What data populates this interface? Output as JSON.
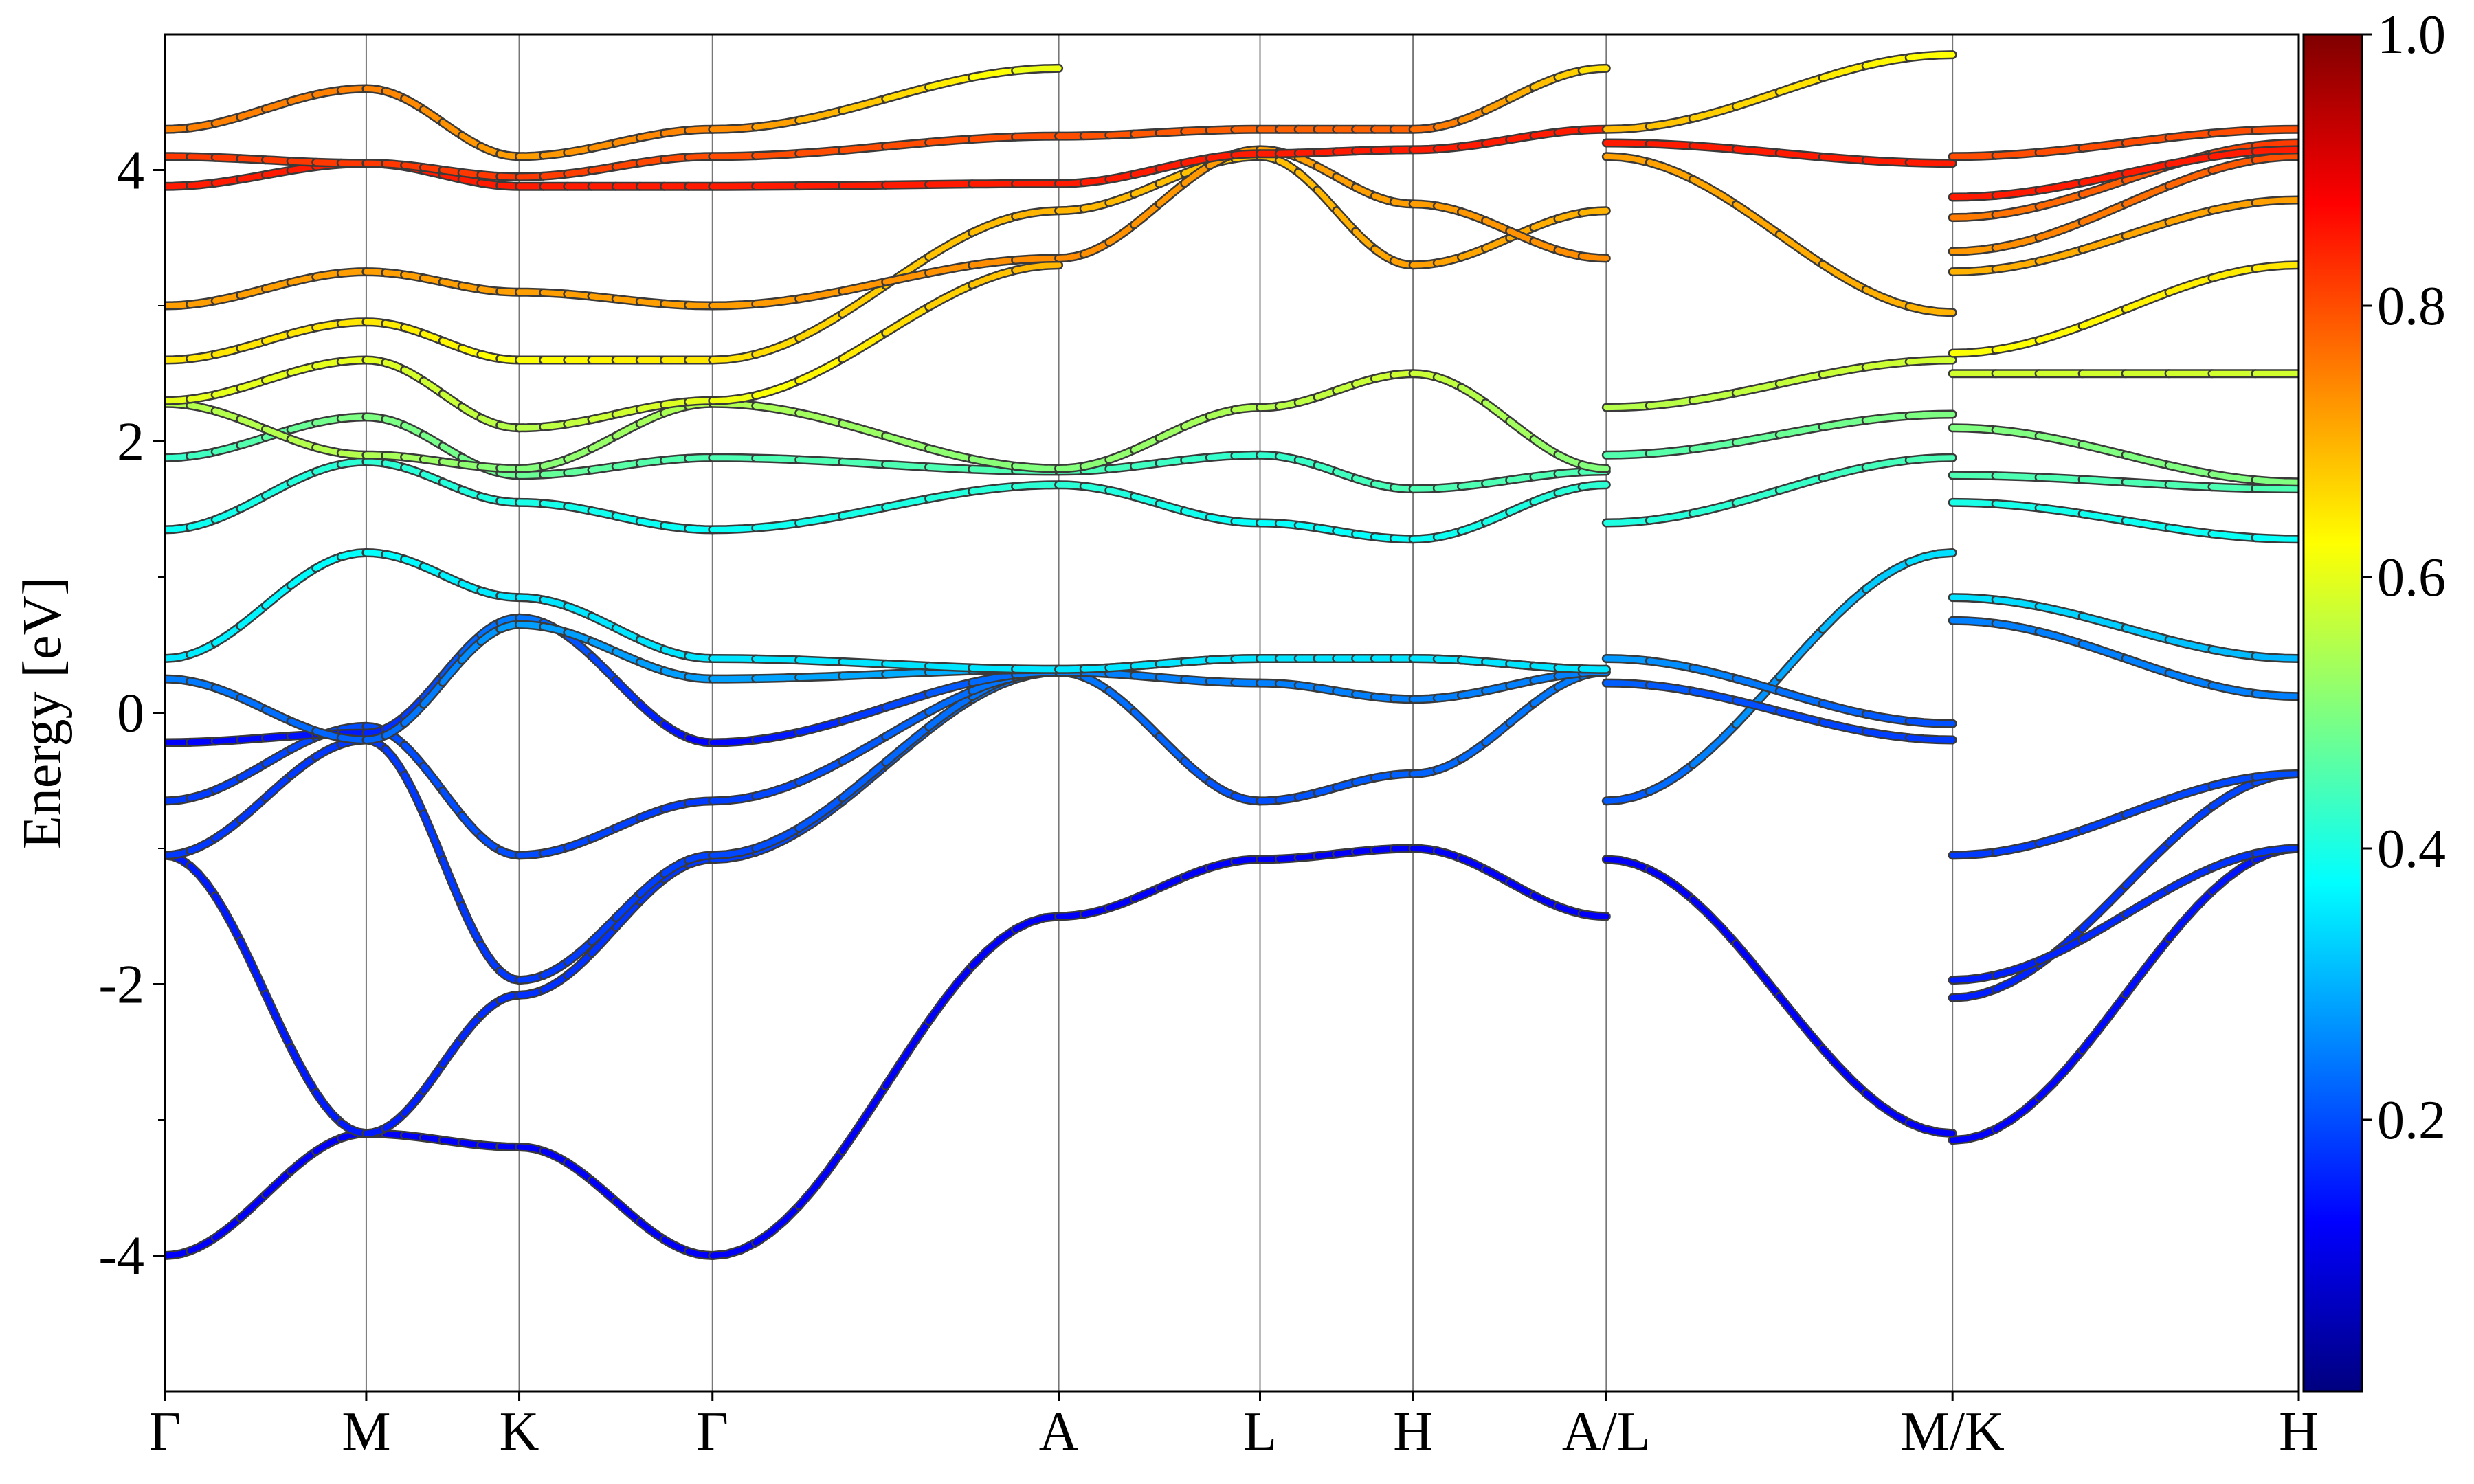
{
  "chart_data": {
    "type": "line",
    "title": "",
    "xlabel": "",
    "ylabel": "Energy [eV]",
    "ylim": [
      -5,
      5
    ],
    "yticks": [
      -4,
      -2,
      0,
      2,
      4
    ],
    "ytick_labels": [
      "-4",
      "-2",
      "0",
      "2",
      "4"
    ],
    "xlim": [
      0,
      10.6
    ],
    "kpoints": [
      {
        "label": "Γ",
        "x": 0.0
      },
      {
        "label": "M",
        "x": 1.0
      },
      {
        "label": "K",
        "x": 1.76
      },
      {
        "label": "Γ",
        "x": 2.72
      },
      {
        "label": "A",
        "x": 4.44
      },
      {
        "label": "L",
        "x": 5.44
      },
      {
        "label": "H",
        "x": 6.2
      },
      {
        "label": "A/L",
        "x": 7.16
      },
      {
        "label": "M/K",
        "x": 8.88
      },
      {
        "label": "H",
        "x": 10.6
      }
    ],
    "colorbar": {
      "colormap": "jet",
      "range": [
        0.0,
        1.0
      ],
      "tick_values": [
        0.2,
        0.4,
        0.6,
        0.8,
        1.0
      ],
      "tick_labels": [
        "0.2",
        "0.4",
        "0.6",
        "0.8",
        "1.0"
      ]
    },
    "series": [
      {
        "x": [
          0,
          1.0,
          1.76,
          2.72,
          4.44,
          5.44,
          6.2,
          7.16
        ],
        "y": [
          -4.0,
          -3.1,
          -3.2,
          -4.0,
          -1.5,
          -1.08,
          -1.0,
          -1.5
        ],
        "weight": [
          0.12,
          0.12,
          0.12,
          0.12,
          0.12,
          0.12,
          0.12,
          0.12
        ]
      },
      {
        "x": [
          0,
          1.0,
          1.76,
          2.72,
          4.44
        ],
        "y": [
          -1.05,
          -3.1,
          -2.08,
          -1.08,
          0.3
        ],
        "weight": [
          0.15,
          0.15,
          0.17,
          0.18,
          0.25
        ]
      },
      {
        "x": [
          0,
          1.0,
          1.76,
          2.72,
          4.44
        ],
        "y": [
          -1.05,
          -0.2,
          -1.97,
          -1.05,
          0.32
        ],
        "weight": [
          0.18,
          0.18,
          0.18,
          0.19,
          0.25
        ]
      },
      {
        "x": [
          0,
          1.0,
          1.76,
          2.72,
          4.44,
          5.44,
          6.2,
          7.16
        ],
        "y": [
          -0.65,
          -0.1,
          -1.05,
          -0.65,
          0.3,
          -0.65,
          -0.45,
          0.3
        ],
        "weight": [
          0.18,
          0.2,
          0.2,
          0.18,
          0.25,
          0.2,
          0.22,
          0.25
        ]
      },
      {
        "x": [
          0,
          1.0,
          1.76,
          2.72,
          4.44,
          5.44,
          6.2,
          7.16
        ],
        "y": [
          -0.22,
          -0.15,
          0.7,
          -0.22,
          0.3,
          0.22,
          0.1,
          0.3
        ],
        "weight": [
          0.12,
          0.15,
          0.25,
          0.12,
          0.25,
          0.25,
          0.25,
          0.25
        ]
      },
      {
        "x": [
          0,
          1.0,
          1.76,
          2.72,
          4.44,
          5.44,
          6.2,
          7.16
        ],
        "y": [
          0.25,
          -0.2,
          0.65,
          0.25,
          0.32,
          0.4,
          0.4,
          0.32
        ],
        "weight": [
          0.25,
          0.22,
          0.28,
          0.28,
          0.3,
          0.35,
          0.35,
          0.3
        ]
      },
      {
        "x": [
          0,
          1.0,
          1.76,
          2.72,
          4.44,
          5.44,
          6.2,
          7.16
        ],
        "y": [
          0.4,
          1.18,
          0.85,
          0.4,
          0.32,
          0.4,
          0.4,
          0.32
        ],
        "weight": [
          0.35,
          0.38,
          0.35,
          0.35,
          0.35,
          0.35,
          0.35,
          0.35
        ]
      },
      {
        "x": [
          0,
          1.0,
          1.76,
          2.72,
          4.44,
          5.44,
          6.2,
          7.16
        ],
        "y": [
          1.35,
          1.85,
          1.55,
          1.35,
          1.68,
          1.4,
          1.28,
          1.68
        ],
        "weight": [
          0.38,
          0.42,
          0.4,
          0.38,
          0.42,
          0.38,
          0.38,
          0.42
        ]
      },
      {
        "x": [
          0,
          1.0,
          1.76,
          2.72,
          4.44,
          5.44,
          6.2,
          7.16
        ],
        "y": [
          1.88,
          2.18,
          1.75,
          1.88,
          1.78,
          1.9,
          1.65,
          1.78
        ],
        "weight": [
          0.42,
          0.5,
          0.48,
          0.45,
          0.45,
          0.42,
          0.45,
          0.45
        ]
      },
      {
        "x": [
          0,
          1.0,
          1.76,
          2.72,
          4.44,
          5.44,
          6.2,
          7.16
        ],
        "y": [
          2.28,
          1.9,
          1.8,
          2.28,
          1.8,
          2.25,
          2.5,
          1.8
        ],
        "weight": [
          0.55,
          0.55,
          0.5,
          0.55,
          0.5,
          0.55,
          0.58,
          0.5
        ]
      },
      {
        "x": [
          0,
          1.0,
          1.76,
          2.72,
          4.44
        ],
        "y": [
          2.3,
          2.6,
          2.1,
          2.3,
          3.3
        ],
        "weight": [
          0.6,
          0.6,
          0.55,
          0.6,
          0.7
        ]
      },
      {
        "x": [
          0,
          1.0,
          1.76,
          2.72,
          4.44,
          5.44,
          6.2,
          7.16
        ],
        "y": [
          2.6,
          2.88,
          2.6,
          2.6,
          3.7,
          4.1,
          3.3,
          3.7
        ],
        "weight": [
          0.65,
          0.65,
          0.62,
          0.65,
          0.7,
          0.68,
          0.72,
          0.7
        ]
      },
      {
        "x": [
          0,
          1.0,
          1.76,
          2.72,
          4.44,
          5.44,
          6.2,
          7.16
        ],
        "y": [
          3.0,
          3.25,
          3.1,
          3.0,
          3.35,
          4.15,
          3.75,
          3.35
        ],
        "weight": [
          0.72,
          0.72,
          0.72,
          0.72,
          0.74,
          0.72,
          0.72,
          0.74
        ]
      },
      {
        "x": [
          0,
          1.0,
          1.76,
          2.72,
          4.44,
          5.44,
          6.2,
          7.16
        ],
        "y": [
          3.88,
          4.05,
          3.88,
          3.88,
          3.9,
          4.12,
          4.15,
          4.3
        ],
        "weight": [
          0.85,
          0.85,
          0.85,
          0.85,
          0.85,
          0.85,
          0.85,
          0.85
        ]
      },
      {
        "x": [
          0,
          1.0,
          1.76,
          2.72,
          4.44,
          5.44,
          6.2,
          7.16
        ],
        "y": [
          4.1,
          4.05,
          3.95,
          4.1,
          4.25,
          4.3,
          4.3,
          4.75
        ],
        "weight": [
          0.82,
          0.82,
          0.82,
          0.8,
          0.8,
          0.78,
          0.78,
          0.65
        ]
      },
      {
        "x": [
          0,
          1.0,
          1.76,
          2.72,
          4.44
        ],
        "y": [
          4.3,
          4.6,
          4.1,
          4.3,
          4.75
        ],
        "weight": [
          0.75,
          0.75,
          0.72,
          0.75,
          0.6
        ]
      },
      {
        "x": [
          7.16,
          8.88
        ],
        "y": [
          -1.08,
          -3.1
        ],
        "weight": [
          0.12,
          0.12
        ]
      },
      {
        "x": [
          7.16,
          8.88
        ],
        "y": [
          -0.65,
          1.18
        ],
        "weight": [
          0.2,
          0.35
        ]
      },
      {
        "x": [
          7.16,
          8.88
        ],
        "y": [
          0.22,
          -0.2
        ],
        "weight": [
          0.22,
          0.18
        ]
      },
      {
        "x": [
          7.16,
          8.88
        ],
        "y": [
          0.4,
          -0.08
        ],
        "weight": [
          0.28,
          0.2
        ]
      },
      {
        "x": [
          7.16,
          8.88
        ],
        "y": [
          1.4,
          1.88
        ],
        "weight": [
          0.4,
          0.45
        ]
      },
      {
        "x": [
          7.16,
          8.88
        ],
        "y": [
          1.9,
          2.2
        ],
        "weight": [
          0.45,
          0.5
        ]
      },
      {
        "x": [
          7.16,
          8.88
        ],
        "y": [
          2.25,
          2.6
        ],
        "weight": [
          0.55,
          0.58
        ]
      },
      {
        "x": [
          7.16,
          8.88
        ],
        "y": [
          4.1,
          2.95
        ],
        "weight": [
          0.72,
          0.7
        ]
      },
      {
        "x": [
          7.16,
          8.88
        ],
        "y": [
          4.2,
          4.05
        ],
        "weight": [
          0.85,
          0.85
        ]
      },
      {
        "x": [
          7.16,
          8.88
        ],
        "y": [
          4.3,
          4.85
        ],
        "weight": [
          0.7,
          0.62
        ]
      },
      {
        "x": [
          8.88,
          10.6
        ],
        "y": [
          -3.15,
          -1.0
        ],
        "weight": [
          0.12,
          0.15
        ]
      },
      {
        "x": [
          8.88,
          10.6
        ],
        "y": [
          -2.1,
          -0.45
        ],
        "weight": [
          0.15,
          0.2
        ]
      },
      {
        "x": [
          8.88,
          10.6
        ],
        "y": [
          -1.97,
          -1.0
        ],
        "weight": [
          0.15,
          0.18
        ]
      },
      {
        "x": [
          8.88,
          10.6
        ],
        "y": [
          -1.05,
          -0.45
        ],
        "weight": [
          0.18,
          0.2
        ]
      },
      {
        "x": [
          8.88,
          10.6
        ],
        "y": [
          0.68,
          0.12
        ],
        "weight": [
          0.25,
          0.25
        ]
      },
      {
        "x": [
          8.88,
          10.6
        ],
        "y": [
          0.85,
          0.4
        ],
        "weight": [
          0.35,
          0.3
        ]
      },
      {
        "x": [
          8.88,
          10.6
        ],
        "y": [
          1.55,
          1.28
        ],
        "weight": [
          0.4,
          0.38
        ]
      },
      {
        "x": [
          8.88,
          10.6
        ],
        "y": [
          1.75,
          1.65
        ],
        "weight": [
          0.45,
          0.45
        ]
      },
      {
        "x": [
          8.88,
          10.6
        ],
        "y": [
          2.1,
          1.7
        ],
        "weight": [
          0.5,
          0.5
        ]
      },
      {
        "x": [
          8.88,
          10.6
        ],
        "y": [
          2.5,
          2.5
        ],
        "weight": [
          0.58,
          0.58
        ]
      },
      {
        "x": [
          8.88,
          10.6
        ],
        "y": [
          2.65,
          3.3
        ],
        "weight": [
          0.62,
          0.65
        ]
      },
      {
        "x": [
          8.88,
          10.6
        ],
        "y": [
          3.25,
          3.78
        ],
        "weight": [
          0.7,
          0.72
        ]
      },
      {
        "x": [
          8.88,
          10.6
        ],
        "y": [
          3.4,
          4.1
        ],
        "weight": [
          0.72,
          0.8
        ]
      },
      {
        "x": [
          8.88,
          10.6
        ],
        "y": [
          3.65,
          4.2
        ],
        "weight": [
          0.75,
          0.82
        ]
      },
      {
        "x": [
          8.88,
          10.6
        ],
        "y": [
          3.8,
          4.15
        ],
        "weight": [
          0.85,
          0.85
        ]
      },
      {
        "x": [
          8.88,
          10.6
        ],
        "y": [
          4.1,
          4.3
        ],
        "weight": [
          0.8,
          0.8
        ]
      }
    ]
  }
}
